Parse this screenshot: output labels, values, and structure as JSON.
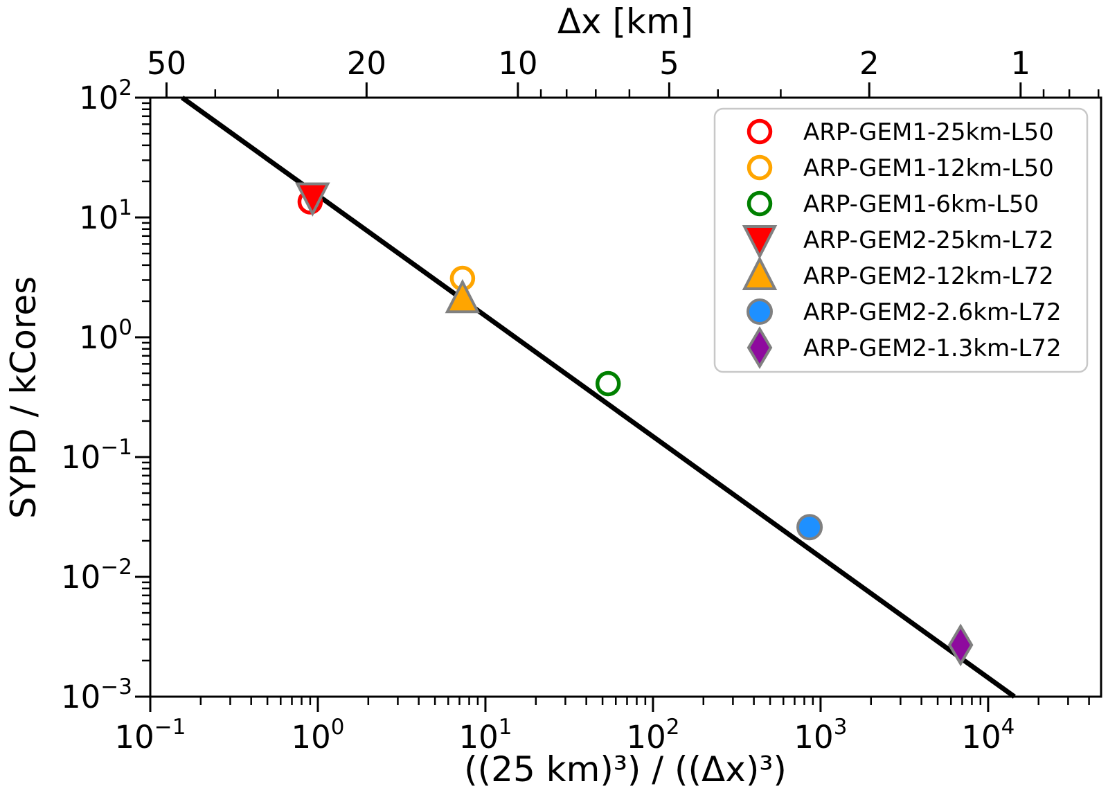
{
  "chart_data": {
    "type": "scatter",
    "background": "#ffffff",
    "frame_color": "#000000",
    "x_axis": {
      "label": "((25 km)³) / ((Δx)³)",
      "scale": "log",
      "range_log10": [
        -1,
        4.674
      ],
      "major_tick_exponents": [
        -1,
        0,
        1,
        2,
        3,
        4
      ]
    },
    "y_axis": {
      "label": "SYPD / kCores",
      "scale": "log",
      "range_log10": [
        -3,
        2
      ],
      "major_tick_exponents": [
        2,
        1,
        0,
        -1,
        -2,
        -3
      ]
    },
    "top_axis": {
      "label": "Δx [km]",
      "transform": "x = (25 / Δx)³",
      "major_ticks": [
        50,
        20,
        10,
        5,
        2,
        1
      ],
      "minor_ticks": [
        40,
        30,
        9,
        8,
        7,
        6,
        4,
        3,
        0.9,
        0.8,
        0.7
      ]
    },
    "fit_line": {
      "color": "#000000",
      "width": 7,
      "points": [
        {
          "x": 0.155,
          "y": 100
        },
        {
          "x": 14350,
          "y": 0.001
        }
      ]
    },
    "series": [
      {
        "name": "ARP-GEM1-25km-L50",
        "marker": "circle-open",
        "color": "#ff0000",
        "x": 0.9,
        "y": 13.5
      },
      {
        "name": "ARP-GEM1-12km-L50",
        "marker": "circle-open",
        "color": "#ffa500",
        "x": 7.3,
        "y": 3.1
      },
      {
        "name": "ARP-GEM1-6km-L50",
        "marker": "circle-open",
        "color": "#008000",
        "x": 54,
        "y": 0.41
      },
      {
        "name": "ARP-GEM2-25km-L72",
        "marker": "triangle-down",
        "color": "#ff0000",
        "edge_color": "#808080",
        "x": 0.93,
        "y": 14.8
      },
      {
        "name": "ARP-GEM2-12km-L72",
        "marker": "triangle-up",
        "color": "#ffa500",
        "edge_color": "#808080",
        "x": 7.3,
        "y": 2.1
      },
      {
        "name": "ARP-GEM2-2.6km-L72",
        "marker": "circle",
        "color": "#1e90ff",
        "edge_color": "#808080",
        "x": 860,
        "y": 0.026
      },
      {
        "name": "ARP-GEM2-1.3km-L72",
        "marker": "diamond",
        "color": "#8e0a9e",
        "edge_color": "#808080",
        "x": 6850,
        "y": 0.0027
      }
    ],
    "legend": {
      "position": "upper right",
      "border_color": "#c8c8c8",
      "background": "#ffffff",
      "entries": [
        "ARP-GEM1-25km-L50",
        "ARP-GEM1-12km-L50",
        "ARP-GEM1-6km-L50",
        "ARP-GEM2-25km-L72",
        "ARP-GEM2-12km-L72",
        "ARP-GEM2-2.6km-L72",
        "ARP-GEM2-1.3km-L72"
      ]
    }
  }
}
